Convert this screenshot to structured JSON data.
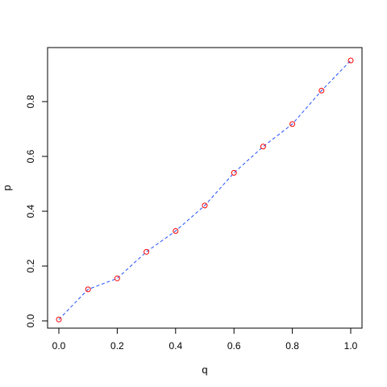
{
  "chart_data": {
    "type": "scatter",
    "title": "",
    "xlabel": "q",
    "ylabel": "p",
    "xlim": [
      0.0,
      1.0
    ],
    "ylim": [
      0.0,
      0.95
    ],
    "x_ticks": [
      0.0,
      0.2,
      0.4,
      0.6,
      0.8,
      1.0
    ],
    "x_tick_labels": [
      "0.0",
      "0.2",
      "0.4",
      "0.6",
      "0.8",
      "1.0"
    ],
    "y_ticks": [
      0.0,
      0.2,
      0.4,
      0.6,
      0.8
    ],
    "y_tick_labels": [
      "0.0",
      "0.2",
      "0.4",
      "0.6",
      "0.8"
    ],
    "grid": false,
    "legend": "none",
    "series": [
      {
        "x": [
          0.0,
          0.1,
          0.2,
          0.3,
          0.4,
          0.5,
          0.6,
          0.7,
          0.8,
          0.9,
          1.0
        ],
        "y": [
          0.005,
          0.115,
          0.155,
          0.252,
          0.328,
          0.421,
          0.54,
          0.636,
          0.718,
          0.84,
          0.95
        ],
        "marker": "open-circle",
        "marker_color": "#ff0000",
        "line_style": "dashed",
        "line_color": "#1f4fff"
      }
    ]
  }
}
